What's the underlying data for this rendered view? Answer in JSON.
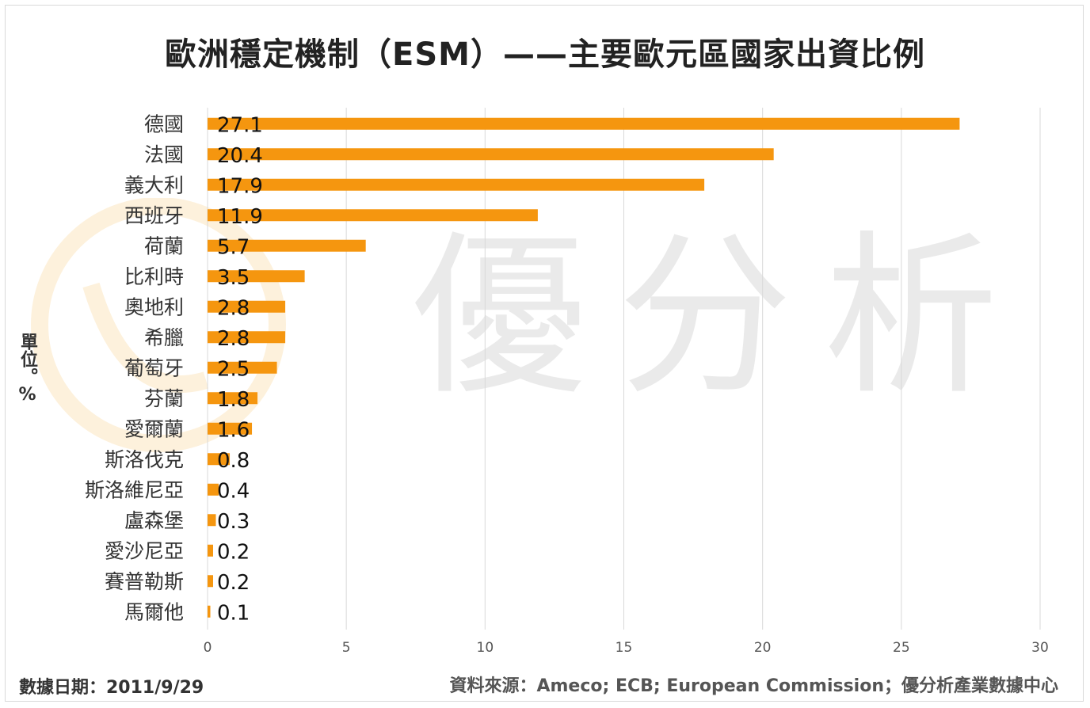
{
  "title": "歐洲穩定機制（ESM）——主要歐元區國家出資比例",
  "ylabel": "單位。%",
  "date_label": "數據日期：2011/9/29",
  "source_label": "資料來源：Ameco; ECB; European Commission；優分析產業數據中心",
  "watermark_text": "優分析",
  "colors": {
    "bar": "#f5960f",
    "grid": "#d9d9d9",
    "axis_text": "#555555",
    "label_text": "#333333",
    "value_text": "#111111",
    "watermark_ring": "#fdf1dc",
    "watermark_text": "#ececec"
  },
  "chart_data": {
    "type": "bar",
    "orientation": "horizontal",
    "title": "歐洲穩定機制（ESM）——主要歐元區國家出資比例",
    "ylabel": "單位。%",
    "xlabel": "",
    "categories": [
      "德國",
      "法國",
      "義大利",
      "西班牙",
      "荷蘭",
      "比利時",
      "奧地利",
      "希臘",
      "葡萄牙",
      "芬蘭",
      "愛爾蘭",
      "斯洛伐克",
      "斯洛維尼亞",
      "盧森堡",
      "愛沙尼亞",
      "賽普勒斯",
      "馬爾他"
    ],
    "values": [
      27.1,
      20.4,
      17.9,
      11.9,
      5.7,
      3.5,
      2.8,
      2.8,
      2.5,
      1.8,
      1.6,
      0.8,
      0.4,
      0.3,
      0.2,
      0.2,
      0.1
    ],
    "value_labels": [
      "27.1",
      "20.4",
      "17.9",
      "11.9",
      "5.7",
      "3.5",
      "2.8",
      "2.8",
      "2.5",
      "1.8",
      "1.6",
      "0.8",
      "0.4",
      "0.3",
      "0.2",
      "0.2",
      "0.1"
    ],
    "xlim": [
      0,
      30
    ],
    "xticks": [
      0,
      5,
      10,
      15,
      20,
      25,
      30
    ],
    "xtick_labels": [
      "0",
      "5",
      "10",
      "15",
      "20",
      "25",
      "30"
    ],
    "grid": "vertical",
    "legend": "none"
  }
}
